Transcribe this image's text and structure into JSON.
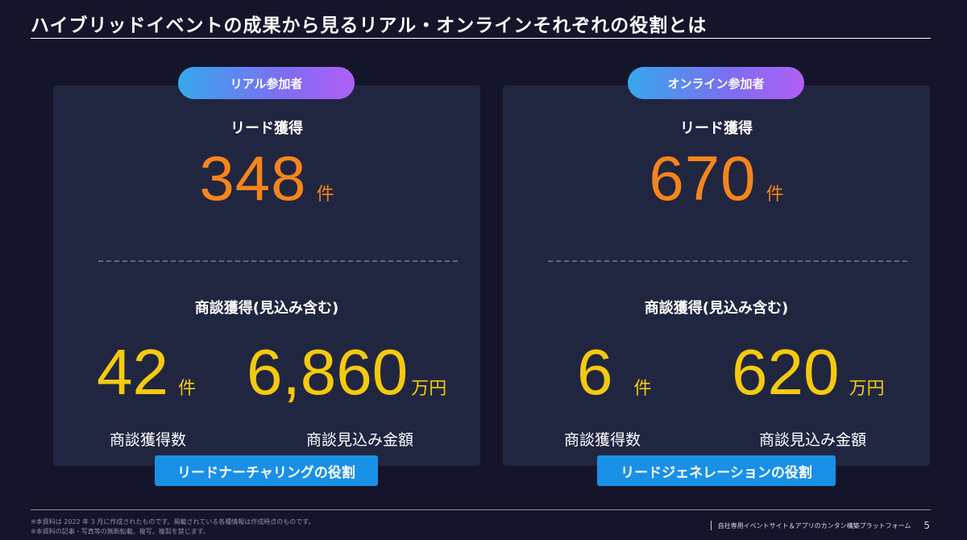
{
  "title": "ハイブリッドイベントの成果から見るリアル・オンラインそれぞれの役割とは",
  "panels": {
    "real": {
      "badge": "リアル参加者",
      "lead_label": "リード獲得",
      "lead_value": "348",
      "lead_unit": "件",
      "deal_label": "商談獲得(見込み含む)",
      "deal_count": "42",
      "deal_count_unit": "件",
      "deal_amount": "6,860",
      "deal_amount_unit": "万円",
      "deal_count_caption": "商談獲得数",
      "deal_amount_caption": "商談見込み金額",
      "role": "リードナーチャリングの役割"
    },
    "online": {
      "badge": "オンライン参加者",
      "lead_label": "リード獲得",
      "lead_value": "670",
      "lead_unit": "件",
      "deal_label": "商談獲得(見込み含む)",
      "deal_count": "6",
      "deal_count_unit": "件",
      "deal_amount": "620",
      "deal_amount_unit": "万円",
      "deal_count_caption": "商談獲得数",
      "deal_amount_caption": "商談見込み金額",
      "role": "リードジェネレーションの役割"
    }
  },
  "footer": {
    "note1": "※本資料は 2022 年 3 月に作成されたものです。掲載されている各種情報は作成時点のものです。",
    "note2": "※本資料の記事・写真等の無断転載、複写、複製を禁じます。",
    "tagline": "自社専用イベントサイト＆アプリのカンタン構築プラットフォーム",
    "page": "5"
  },
  "colors": {
    "background": "#14152a",
    "panel": "#212640",
    "lead_number": "#f5851b",
    "deal_number": "#f5c90f",
    "role_button": "#1990e8"
  }
}
